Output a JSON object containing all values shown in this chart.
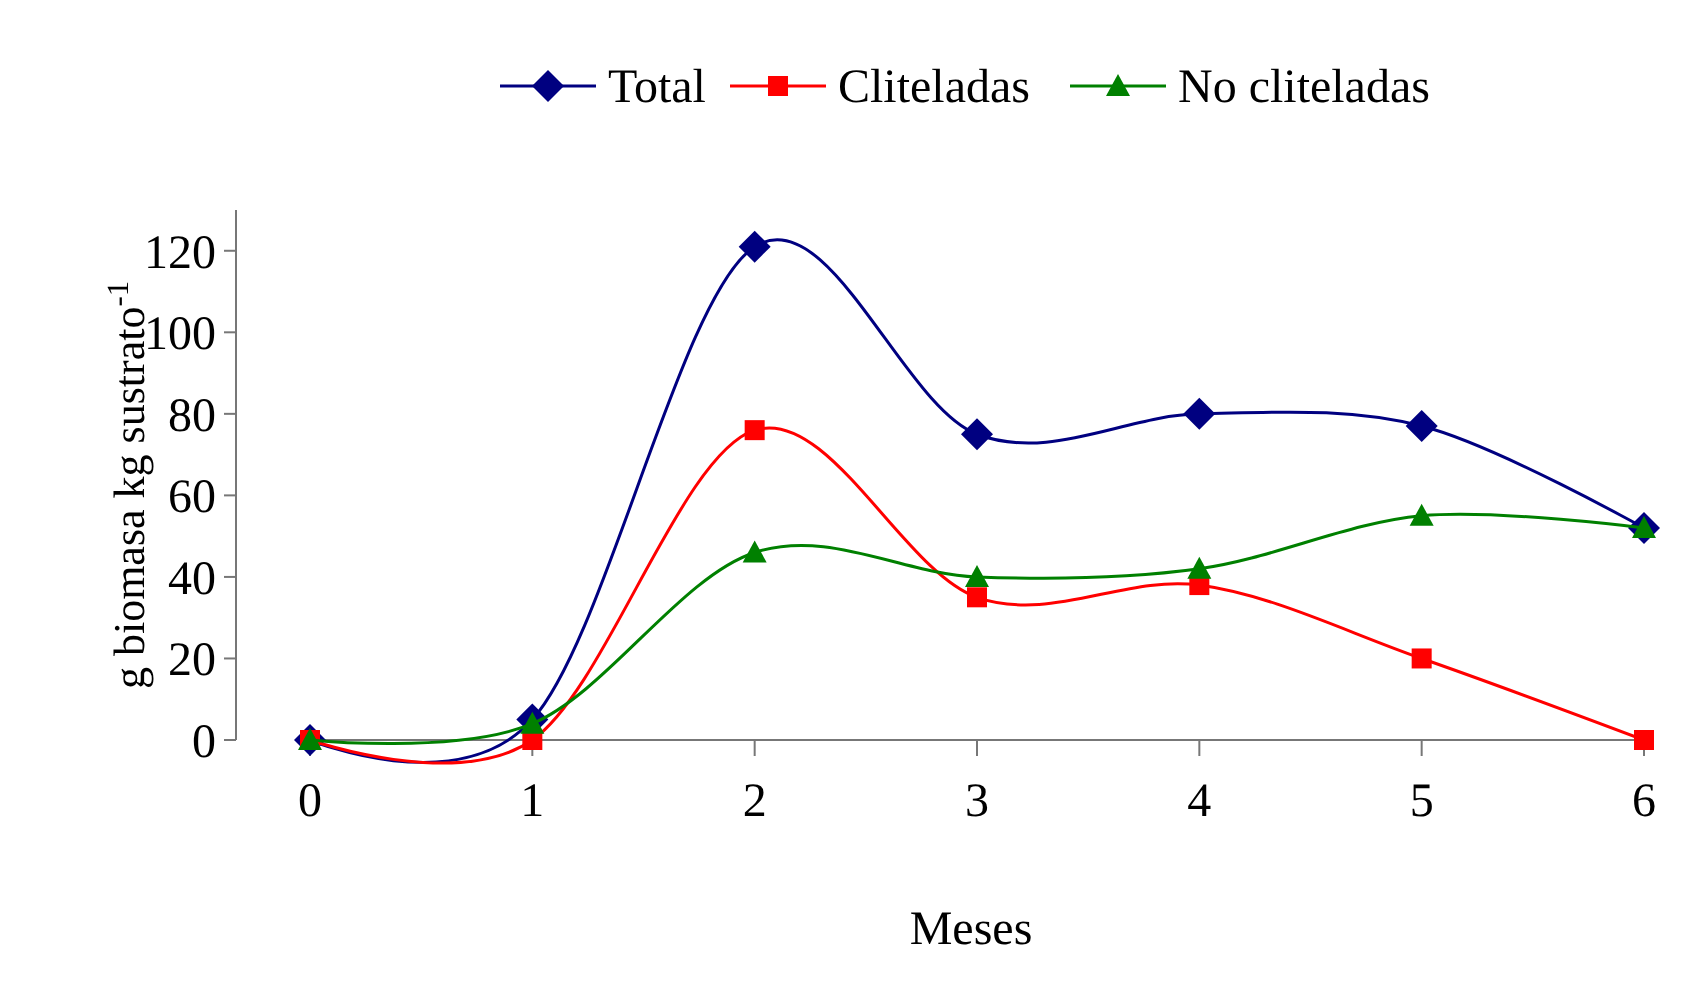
{
  "chart_data": {
    "type": "line",
    "xlabel": "Meses",
    "ylabel": "g biomasa kg sustrato$^{-1}$",
    "x": [
      0,
      1,
      2,
      3,
      4,
      5,
      6
    ],
    "xlim": [
      0,
      6
    ],
    "xticks": [
      0,
      1,
      2,
      3,
      4,
      5,
      6
    ],
    "ylim": [
      0,
      130
    ],
    "yticks": [
      0,
      20,
      40,
      60,
      80,
      100,
      120
    ],
    "grid": false,
    "legend": "top",
    "series": [
      {
        "name": "Total",
        "color": "#000080",
        "marker": "diamond",
        "values": [
          0,
          5,
          121,
          75,
          80,
          77,
          52
        ]
      },
      {
        "name": "Cliteladas",
        "color": "#ff0000",
        "marker": "square",
        "values": [
          0,
          0,
          76,
          35,
          38,
          20,
          0
        ]
      },
      {
        "name": "No cliteladas",
        "color": "#008000",
        "marker": "triangle",
        "values": [
          0,
          4,
          46,
          40,
          42,
          55,
          52
        ]
      }
    ]
  }
}
